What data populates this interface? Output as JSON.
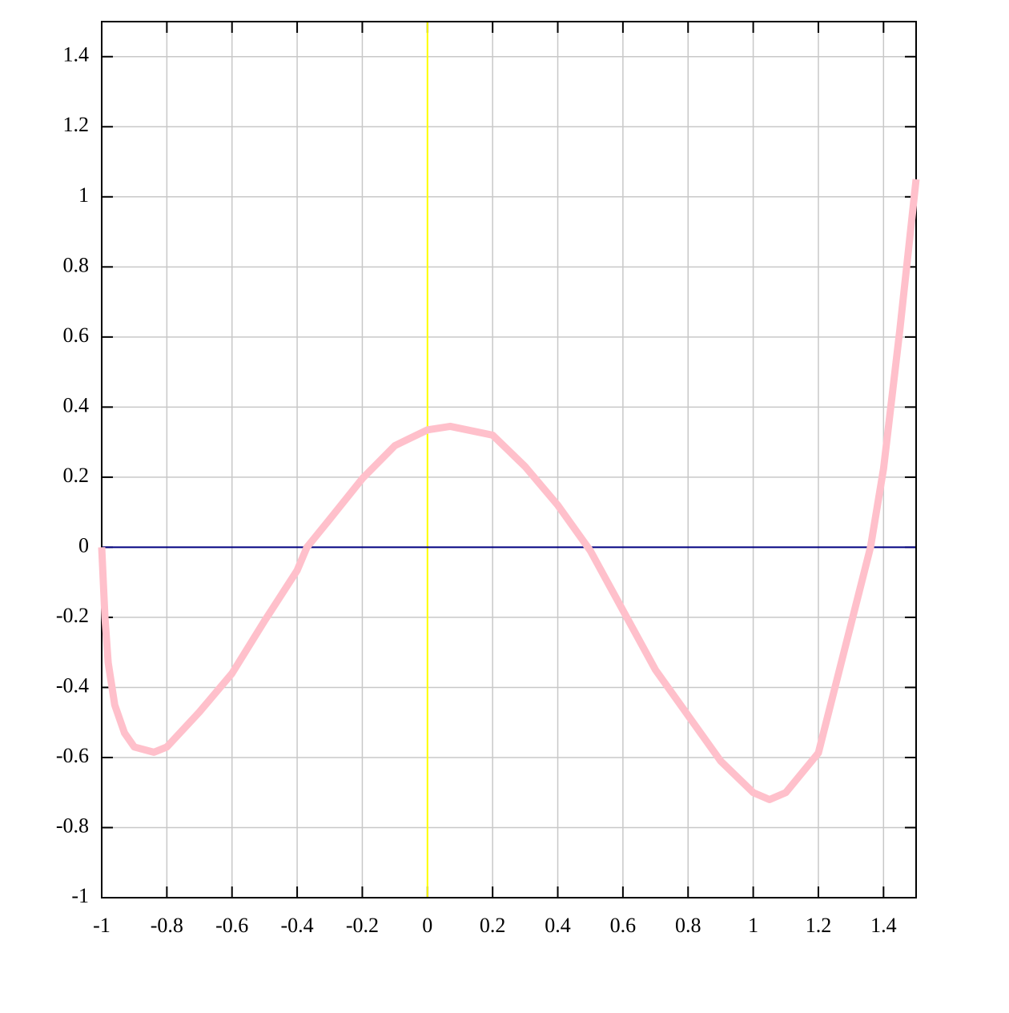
{
  "chart_data": {
    "type": "line",
    "x": [
      -1,
      -0.99,
      -0.98,
      -0.96,
      -0.93,
      -0.9,
      -0.84,
      -0.8,
      -0.7,
      -0.6,
      -0.5,
      -0.4,
      -0.37,
      -0.3,
      -0.2,
      -0.1,
      0,
      0.07,
      0.2,
      0.3,
      0.4,
      0.5,
      0.6,
      0.7,
      0.8,
      0.9,
      1.0,
      1.05,
      1.1,
      1.2,
      1.3,
      1.36,
      1.4,
      1.45,
      1.5
    ],
    "values": [
      0,
      -0.2,
      -0.33,
      -0.45,
      -0.53,
      -0.57,
      -0.585,
      -0.57,
      -0.47,
      -0.36,
      -0.21,
      -0.066,
      0,
      0.08,
      0.196,
      0.29,
      0.335,
      0.345,
      0.32,
      0.23,
      0.12,
      -0.01,
      -0.18,
      -0.35,
      -0.48,
      -0.61,
      -0.7,
      -0.72,
      -0.7,
      -0.587,
      -0.22,
      0,
      0.224,
      0.62,
      1.05
    ],
    "color": "#ffc0cb",
    "xlim": [
      -1,
      1.5
    ],
    "ylim": [
      -1,
      1.5
    ],
    "xticks": [
      -1,
      -0.8,
      -0.6,
      -0.4,
      -0.2,
      0,
      0.2,
      0.4,
      0.6,
      0.8,
      1,
      1.2,
      1.4
    ],
    "yticks": [
      -1,
      -0.8,
      -0.6,
      -0.4,
      -0.2,
      0,
      0.2,
      0.4,
      0.6,
      0.8,
      1,
      1.2,
      1.4
    ],
    "grid": true,
    "zero_line_colors": {
      "x": "#ffff00",
      "y": "#000080"
    }
  }
}
